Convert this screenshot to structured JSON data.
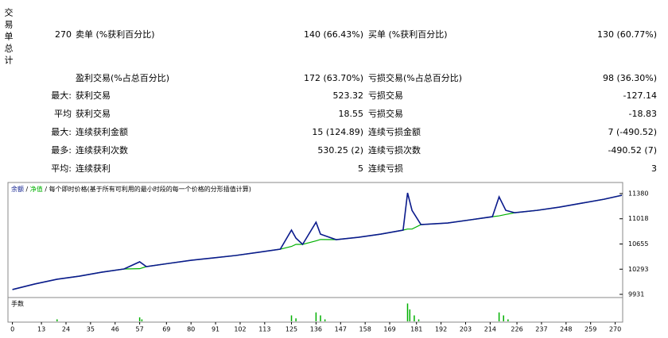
{
  "side_title": "交易单总计",
  "stats": {
    "rows": [
      {
        "label": "270",
        "name": "卖单 (%获利百分比)",
        "value": "140 (66.43%)",
        "name2": "买单 (%获利百分比)",
        "value2": "130 (60.77%)"
      },
      {
        "name": "盈利交易(%占总百分比)",
        "value": "172 (63.70%)",
        "name2": "亏损交易(%占总百分比)",
        "value2": "98 (36.30%)"
      },
      {
        "label": "最大:",
        "name": "获利交易",
        "value": "523.32",
        "name2": "亏损交易",
        "value2": "-127.14"
      },
      {
        "label": "平均",
        "name": "获利交易",
        "value": "18.55",
        "name2": "亏损交易",
        "value2": "-18.83"
      },
      {
        "label": "最大:",
        "name": "连续获利金额",
        "value": "15 (124.89)",
        "name2": "连续亏损金额",
        "value2": "7 (-490.52)"
      },
      {
        "label": "最多:",
        "name": "连续获利次数",
        "value": "530.25 (2)",
        "name2": "连续亏损次数",
        "value2": "-490.52 (7)"
      },
      {
        "label": "平均:",
        "name": "连续获利",
        "value": "5",
        "name2": "连续亏损",
        "value2": "3"
      }
    ]
  },
  "chart_data": [
    {
      "type": "line",
      "legend_separator": "/",
      "subtitle": "每个即时价格(基于所有可利用的最小时段的每一个价格的分形插值计算)",
      "x": [
        0,
        10,
        20,
        30,
        40,
        50,
        57,
        60,
        70,
        80,
        90,
        100,
        110,
        120,
        125,
        127,
        130,
        136,
        138,
        145,
        155,
        165,
        175,
        177,
        179,
        183,
        195,
        205,
        215,
        218,
        221,
        225,
        235,
        245,
        255,
        265,
        273
      ],
      "series": [
        {
          "name": "净值",
          "color": "#00b000",
          "values": [
            10000,
            10080,
            10148,
            10193,
            10250,
            10296,
            10300,
            10330,
            10376,
            10421,
            10455,
            10490,
            10535,
            10581,
            10620,
            10650,
            10650,
            10700,
            10720,
            10718,
            10752,
            10797,
            10855,
            10870,
            10870,
            10934,
            10957,
            11002,
            11048,
            11060,
            11080,
            11105,
            11139,
            11185,
            11242,
            11299,
            11356
          ]
        },
        {
          "name": "余额",
          "color": "#0a1a8c",
          "values": [
            10000,
            10080,
            10148,
            10193,
            10250,
            10296,
            10399,
            10330,
            10376,
            10421,
            10455,
            10490,
            10535,
            10581,
            10855,
            10740,
            10650,
            10968,
            10797,
            10718,
            10752,
            10797,
            10855,
            11390,
            11139,
            10934,
            10957,
            11002,
            11048,
            11333,
            11139,
            11105,
            11139,
            11185,
            11242,
            11299,
            11356
          ]
        }
      ],
      "xlim": [
        -2,
        273
      ],
      "ylim": [
        9908,
        11517
      ],
      "xticks": [
        0,
        13,
        24,
        35,
        46,
        57,
        69,
        80,
        91,
        102,
        113,
        125,
        136,
        147,
        158,
        169,
        181,
        192,
        203,
        214,
        226,
        237,
        248,
        259,
        270
      ],
      "yticks": [
        9931,
        10293,
        10655,
        11018,
        11380
      ]
    },
    {
      "type": "bar",
      "title": "手数",
      "color": "#00b000",
      "xlim": [
        -2,
        273
      ],
      "ylim": [
        0,
        1
      ],
      "x": [
        20,
        57,
        58,
        125,
        127,
        136,
        138,
        140,
        177,
        178,
        180,
        182,
        218,
        220,
        222
      ],
      "values": [
        0.1,
        0.2,
        0.1,
        0.3,
        0.15,
        0.45,
        0.3,
        0.1,
        0.9,
        0.6,
        0.3,
        0.1,
        0.45,
        0.3,
        0.1
      ]
    }
  ]
}
